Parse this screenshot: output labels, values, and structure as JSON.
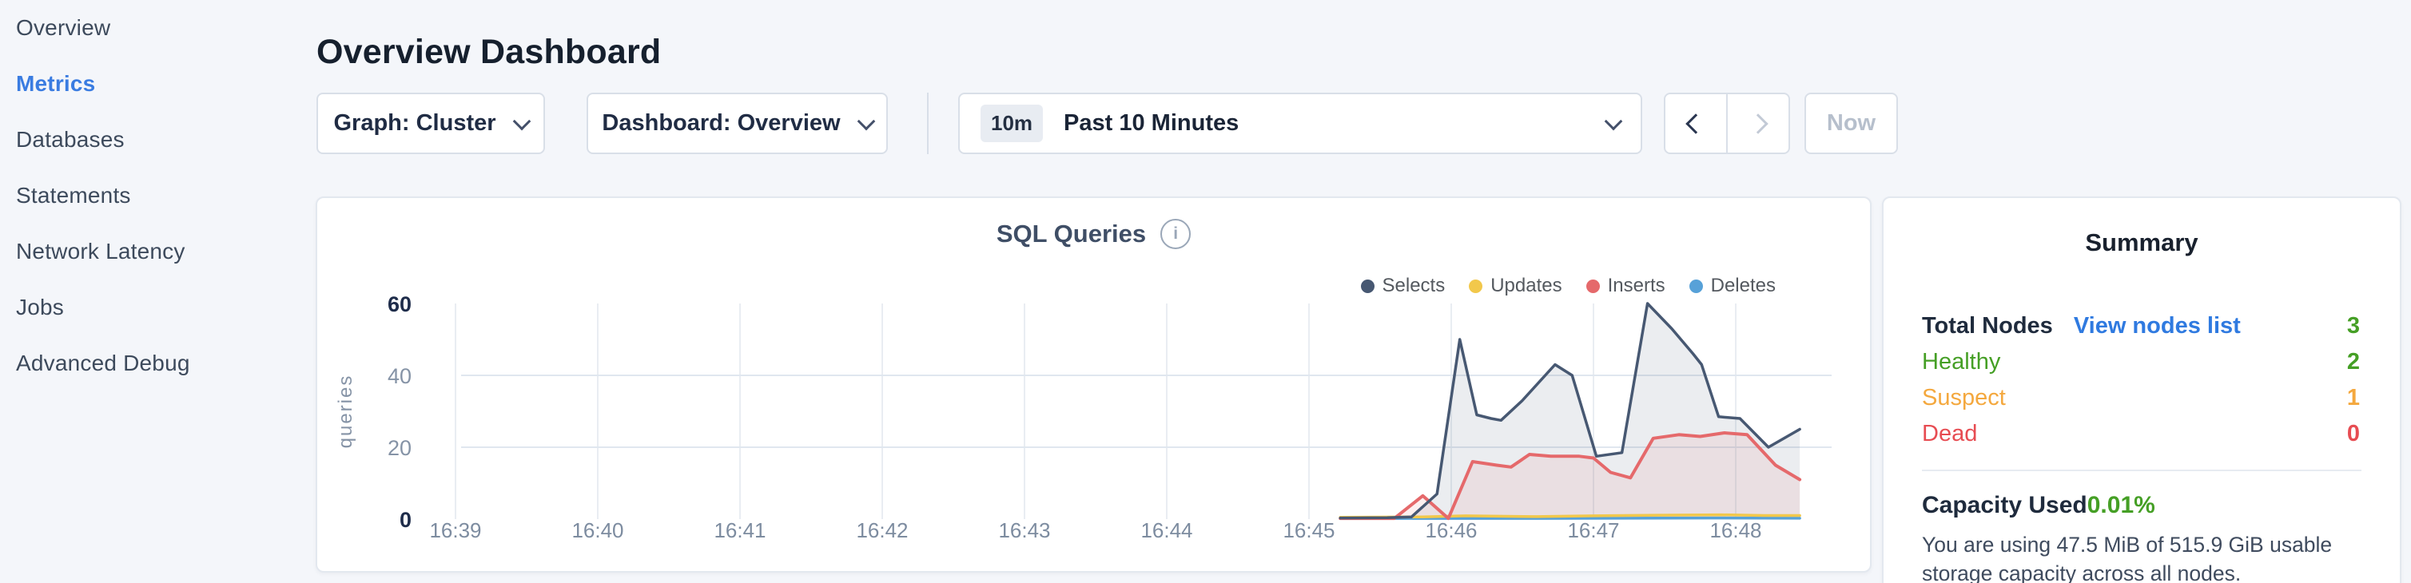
{
  "sidebar": {
    "items": [
      {
        "label": "Overview",
        "active": false
      },
      {
        "label": "Metrics",
        "active": true
      },
      {
        "label": "Databases",
        "active": false
      },
      {
        "label": "Statements",
        "active": false
      },
      {
        "label": "Network Latency",
        "active": false
      },
      {
        "label": "Jobs",
        "active": false
      },
      {
        "label": "Advanced Debug",
        "active": false
      }
    ],
    "active_color": "#3a7ce1"
  },
  "header": {
    "title": "Overview Dashboard"
  },
  "controls": {
    "graph_dropdown": "Graph: Cluster",
    "dashboard_dropdown": "Dashboard: Overview",
    "time_badge": "10m",
    "time_label": "Past 10 Minutes",
    "now_label": "Now"
  },
  "summary": {
    "title": "Summary",
    "total_nodes_label": "Total Nodes",
    "view_link": "View nodes list",
    "total_nodes_value": "3",
    "total_nodes_color": "#459f25",
    "status_rows": [
      {
        "label": "Healthy",
        "value": "2",
        "color": "#459f25"
      },
      {
        "label": "Suspect",
        "value": "1",
        "color": "#f4a83e"
      },
      {
        "label": "Dead",
        "value": "0",
        "color": "#e74c52"
      }
    ],
    "capacity_label": "Capacity Used",
    "capacity_value": "0.01%",
    "capacity_color": "#459f25",
    "capacity_desc": "You are using 47.5 MiB of 515.9 GiB usable storage capacity across all nodes."
  },
  "chart_data": {
    "type": "area",
    "title": "SQL Queries",
    "ylabel": "queries",
    "x_ticks": [
      "16:39",
      "16:40",
      "16:41",
      "16:42",
      "16:43",
      "16:44",
      "16:45",
      "16:46",
      "16:47",
      "16:48"
    ],
    "y_ticks": [
      0,
      20,
      40,
      60
    ],
    "ylim": [
      0,
      60
    ],
    "grid": true,
    "legend_position": "top-right",
    "series": [
      {
        "name": "Selects",
        "color": "#475872",
        "fill": "rgba(71,88,114,0.11)",
        "points": [
          [
            6.22,
            0.3
          ],
          [
            6.55,
            0.4
          ],
          [
            6.72,
            0.6
          ],
          [
            6.9,
            7
          ],
          [
            7.06,
            50
          ],
          [
            7.18,
            29
          ],
          [
            7.28,
            28
          ],
          [
            7.35,
            27.5
          ],
          [
            7.5,
            33
          ],
          [
            7.73,
            43
          ],
          [
            7.85,
            40
          ],
          [
            8.02,
            17.5
          ],
          [
            8.2,
            18.5
          ],
          [
            8.38,
            60
          ],
          [
            8.55,
            53
          ],
          [
            8.7,
            46
          ],
          [
            8.76,
            43
          ],
          [
            8.88,
            28.5
          ],
          [
            9.03,
            28
          ],
          [
            9.23,
            20
          ],
          [
            9.45,
            25
          ]
        ]
      },
      {
        "name": "Updates",
        "color": "#f2c84b",
        "fill": "none",
        "points": [
          [
            6.22,
            0.5
          ],
          [
            6.8,
            0.6
          ],
          [
            7.1,
            0.9
          ],
          [
            7.6,
            0.7
          ],
          [
            8.0,
            0.9
          ],
          [
            8.45,
            1.1
          ],
          [
            8.9,
            1.2
          ],
          [
            9.2,
            1.0
          ],
          [
            9.45,
            1.0
          ]
        ]
      },
      {
        "name": "Inserts",
        "color": "#e5696b",
        "fill": "rgba(229,105,107,0.10)",
        "points": [
          [
            6.22,
            0.2
          ],
          [
            6.6,
            0.2
          ],
          [
            6.8,
            6.5
          ],
          [
            6.98,
            0.2
          ],
          [
            7.15,
            16
          ],
          [
            7.32,
            15
          ],
          [
            7.42,
            14.5
          ],
          [
            7.55,
            18
          ],
          [
            7.7,
            17.5
          ],
          [
            7.9,
            17.5
          ],
          [
            8.0,
            17
          ],
          [
            8.12,
            13
          ],
          [
            8.26,
            11.5
          ],
          [
            8.42,
            22.5
          ],
          [
            8.6,
            23.5
          ],
          [
            8.75,
            23
          ],
          [
            8.92,
            24
          ],
          [
            9.08,
            23.5
          ],
          [
            9.28,
            15
          ],
          [
            9.45,
            11
          ]
        ]
      },
      {
        "name": "Deletes",
        "color": "#57a1d8",
        "fill": "none",
        "points": [
          [
            6.22,
            0.15
          ],
          [
            7.0,
            0.2
          ],
          [
            7.6,
            0.2
          ],
          [
            8.2,
            0.25
          ],
          [
            8.8,
            0.3
          ],
          [
            9.45,
            0.25
          ]
        ]
      }
    ]
  }
}
